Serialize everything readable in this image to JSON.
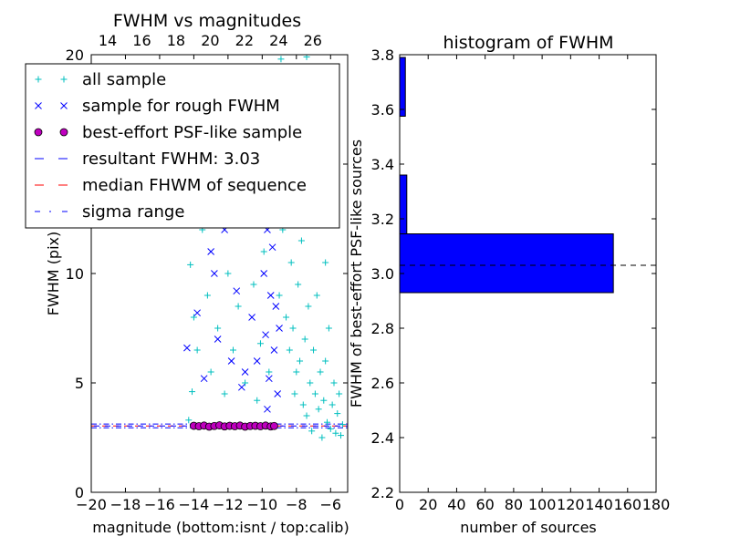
{
  "chart_data": [
    {
      "type": "scatter",
      "title": "FWHM vs magnitudes",
      "xlabel": "magnitude (bottom:isnt / top:calib)",
      "ylabel": "FWHM (pix)",
      "xlim": [
        -20,
        -5
      ],
      "ylim": [
        0,
        20
      ],
      "x_ticks": [
        "−20",
        "−18",
        "−16",
        "−14",
        "−12",
        "−10",
        "−8",
        "−6"
      ],
      "x_tick_values": [
        -20,
        -18,
        -16,
        -14,
        -12,
        -10,
        -8,
        -6
      ],
      "top_x_ticks": [
        "14",
        "16",
        "18",
        "20",
        "22",
        "24",
        "26"
      ],
      "top_x_tick_values": [
        -20,
        -18,
        -16,
        -14,
        -12,
        -10,
        -8
      ],
      "y_ticks": [
        "0",
        "5",
        "10",
        "15",
        "20"
      ],
      "y_tick_values": [
        0,
        5,
        10,
        15,
        20
      ],
      "legend_position": "top-left",
      "legend": [
        {
          "label": "all sample",
          "marker": "plus",
          "color": "#00bfbf"
        },
        {
          "label": "sample for rough FWHM",
          "marker": "x",
          "color": "#0000ff"
        },
        {
          "label": "best-effort PSF-like sample",
          "marker": "circle",
          "color": "#bf00bf"
        },
        {
          "label": "resultant FWHM: 3.03",
          "marker": "dashed-line",
          "color": "#0000ff"
        },
        {
          "label": "median FHWM of sequence",
          "marker": "dashed-line",
          "color": "#ff0000"
        },
        {
          "label": "sigma range",
          "marker": "dashdot-line",
          "color": "#0000ff"
        }
      ],
      "resultant_fwhm": 3.03,
      "median_fwhm": 3.03,
      "sigma_range": [
        2.95,
        3.12
      ],
      "series": [
        {
          "name": "all sample",
          "color": "#00bfbf",
          "points": [
            [
              -14.3,
              3.3
            ],
            [
              -14.1,
              4.6
            ],
            [
              -14.0,
              8.0
            ],
            [
              -14.2,
              10.4
            ],
            [
              -13.8,
              6.5
            ],
            [
              -13.5,
              12.0
            ],
            [
              -13.2,
              9.0
            ],
            [
              -13.0,
              5.5
            ],
            [
              -12.6,
              7.5
            ],
            [
              -12.2,
              4.5
            ],
            [
              -12.0,
              10.0
            ],
            [
              -11.7,
              6.5
            ],
            [
              -11.4,
              8.5
            ],
            [
              -11.0,
              5.0
            ],
            [
              -10.7,
              12.5
            ],
            [
              -10.5,
              9.5
            ],
            [
              -10.3,
              4.2
            ],
            [
              -10.1,
              6.8
            ],
            [
              -9.9,
              11.0
            ],
            [
              -9.7,
              14.0
            ],
            [
              -9.6,
              5.5
            ],
            [
              -9.4,
              13.0
            ],
            [
              -9.2,
              15.0
            ],
            [
              -9.0,
              9.0
            ],
            [
              -8.9,
              19.8
            ],
            [
              -8.8,
              12.0
            ],
            [
              -8.6,
              8.0
            ],
            [
              -8.5,
              14.5
            ],
            [
              -8.4,
              6.5
            ],
            [
              -8.3,
              10.5
            ],
            [
              -8.2,
              7.5
            ],
            [
              -8.1,
              4.5
            ],
            [
              -8.0,
              5.5
            ],
            [
              -7.9,
              9.5
            ],
            [
              -7.8,
              6.0
            ],
            [
              -7.7,
              11.5
            ],
            [
              -7.6,
              4.0
            ],
            [
              -7.5,
              7.0
            ],
            [
              -7.4,
              3.5
            ],
            [
              -7.3,
              8.5
            ],
            [
              -7.2,
              5.0
            ],
            [
              -7.1,
              2.8
            ],
            [
              -7.0,
              6.5
            ],
            [
              -6.9,
              4.5
            ],
            [
              -6.8,
              9.0
            ],
            [
              -6.7,
              3.8
            ],
            [
              -6.6,
              5.5
            ],
            [
              -6.5,
              2.5
            ],
            [
              -6.4,
              4.2
            ],
            [
              -6.3,
              6.0
            ],
            [
              -6.2,
              3.2
            ],
            [
              -6.1,
              7.5
            ],
            [
              -6.0,
              2.9
            ],
            [
              -5.9,
              4.0
            ],
            [
              -5.8,
              5.0
            ],
            [
              -5.7,
              2.7
            ],
            [
              -5.6,
              3.6
            ],
            [
              -5.5,
              4.5
            ],
            [
              -5.4,
              2.6
            ],
            [
              -5.3,
              3.1
            ],
            [
              -7.4,
              19.9
            ],
            [
              -6.8,
              18.5
            ],
            [
              -8.7,
              13.5
            ],
            [
              -6.3,
              10.5
            ],
            [
              -7.6,
              12.5
            ]
          ]
        },
        {
          "name": "sample for rough FWHM",
          "color": "#0000ff",
          "points": [
            [
              -14.4,
              6.6
            ],
            [
              -13.8,
              8.2
            ],
            [
              -13.4,
              5.2
            ],
            [
              -13.0,
              11.0
            ],
            [
              -12.6,
              7.0
            ],
            [
              -12.2,
              12.0
            ],
            [
              -11.8,
              6.0
            ],
            [
              -11.5,
              9.2
            ],
            [
              -11.2,
              4.8
            ],
            [
              -10.9,
              12.6
            ],
            [
              -10.6,
              8.0
            ],
            [
              -10.3,
              6.0
            ],
            [
              -10.1,
              13.5
            ],
            [
              -9.9,
              10.0
            ],
            [
              -9.8,
              7.2
            ],
            [
              -9.7,
              12.0
            ],
            [
              -9.6,
              5.2
            ],
            [
              -9.5,
              9.0
            ],
            [
              -9.4,
              11.2
            ],
            [
              -9.3,
              6.5
            ],
            [
              -9.2,
              8.5
            ],
            [
              -9.1,
              4.5
            ],
            [
              -9.0,
              7.5
            ],
            [
              -9.4,
              14.5
            ],
            [
              -10.4,
              13.0
            ],
            [
              -12.8,
              10.0
            ],
            [
              -11.0,
              5.5
            ],
            [
              -9.7,
              3.8
            ]
          ]
        },
        {
          "name": "best-effort PSF-like sample",
          "color": "#bf00bf",
          "points": [
            [
              -14.0,
              3.04
            ],
            [
              -13.7,
              3.02
            ],
            [
              -13.4,
              3.05
            ],
            [
              -13.1,
              3.0
            ],
            [
              -12.8,
              3.03
            ],
            [
              -12.5,
              3.06
            ],
            [
              -12.2,
              3.01
            ],
            [
              -11.9,
              3.04
            ],
            [
              -11.6,
              3.02
            ],
            [
              -11.3,
              3.05
            ],
            [
              -11.0,
              3.0
            ],
            [
              -10.7,
              3.03
            ],
            [
              -10.4,
              3.04
            ],
            [
              -10.1,
              3.02
            ],
            [
              -9.8,
              3.05
            ],
            [
              -9.5,
              3.01
            ],
            [
              -9.3,
              3.03
            ]
          ]
        }
      ]
    },
    {
      "type": "bar",
      "orientation": "horizontal",
      "title": "histogram of FWHM",
      "xlabel": "number of sources",
      "ylabel": "FWHM of best-effort PSF-like sources",
      "xlim": [
        0,
        180
      ],
      "ylim": [
        2.2,
        3.8
      ],
      "x_ticks": [
        "0",
        "20",
        "40",
        "60",
        "80",
        "100",
        "120",
        "140",
        "160",
        "180"
      ],
      "x_tick_values": [
        0,
        20,
        40,
        60,
        80,
        100,
        120,
        140,
        160,
        180
      ],
      "y_ticks": [
        "2.2",
        "2.4",
        "2.6",
        "2.8",
        "3.0",
        "3.2",
        "3.4",
        "3.6",
        "3.8"
      ],
      "y_tick_values": [
        2.2,
        2.4,
        2.6,
        2.8,
        3.0,
        3.2,
        3.4,
        3.6,
        3.8
      ],
      "bar_color": "#0000ff",
      "bins": [
        {
          "from": 2.93,
          "to": 3.145,
          "count": 150
        },
        {
          "from": 3.145,
          "to": 3.36,
          "count": 5
        },
        {
          "from": 3.575,
          "to": 3.79,
          "count": 4
        }
      ],
      "reference_line_y": 3.03
    }
  ]
}
